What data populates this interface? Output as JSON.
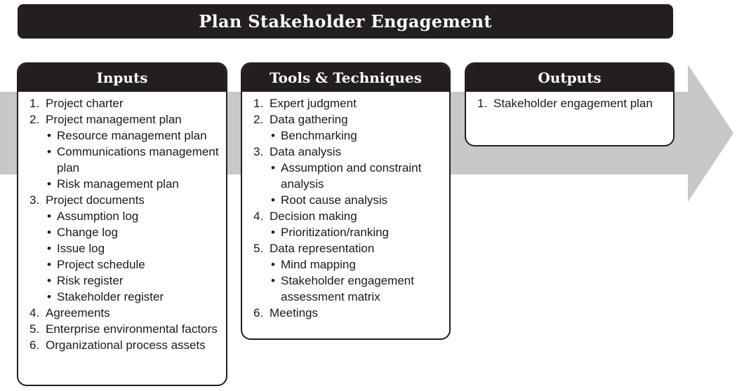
{
  "title": "Plan Stakeholder Engagement",
  "colors": {
    "header_bg": "#231f20",
    "header_text": "#ffffff",
    "arrow": "#c8c8c8",
    "box_bg": "#ffffff"
  },
  "inputs": {
    "heading": "Inputs",
    "items": [
      {
        "num": "1.",
        "text": "Project charter",
        "subs": []
      },
      {
        "num": "2.",
        "text": "Project management plan",
        "subs": [
          "Resource management plan",
          "Communications management plan",
          "Risk management plan"
        ]
      },
      {
        "num": "3.",
        "text": "Project documents",
        "subs": [
          "Assumption log",
          "Change log",
          "Issue log",
          "Project schedule",
          "Risk register",
          "Stakeholder register"
        ]
      },
      {
        "num": "4.",
        "text": "Agreements",
        "subs": []
      },
      {
        "num": "5.",
        "text": "Enterprise environmental factors",
        "subs": []
      },
      {
        "num": "6.",
        "text": "Organizational process assets",
        "subs": []
      }
    ]
  },
  "tools": {
    "heading": "Tools & Techniques",
    "items": [
      {
        "num": "1.",
        "text": "Expert judgment",
        "subs": []
      },
      {
        "num": "2.",
        "text": "Data gathering",
        "subs": [
          "Benchmarking"
        ]
      },
      {
        "num": "3.",
        "text": "Data analysis",
        "subs": [
          "Assumption and constraint analysis",
          "Root cause analysis"
        ]
      },
      {
        "num": "4.",
        "text": "Decision making",
        "subs": [
          "Prioritization/ranking"
        ]
      },
      {
        "num": "5.",
        "text": "Data representation",
        "subs": [
          "Mind mapping",
          "Stakeholder engagement assessment matrix"
        ]
      },
      {
        "num": "6.",
        "text": "Meetings",
        "subs": []
      }
    ]
  },
  "outputs": {
    "heading": "Outputs",
    "items": [
      {
        "num": "1.",
        "text": "Stakeholder engagement plan",
        "subs": []
      }
    ]
  }
}
